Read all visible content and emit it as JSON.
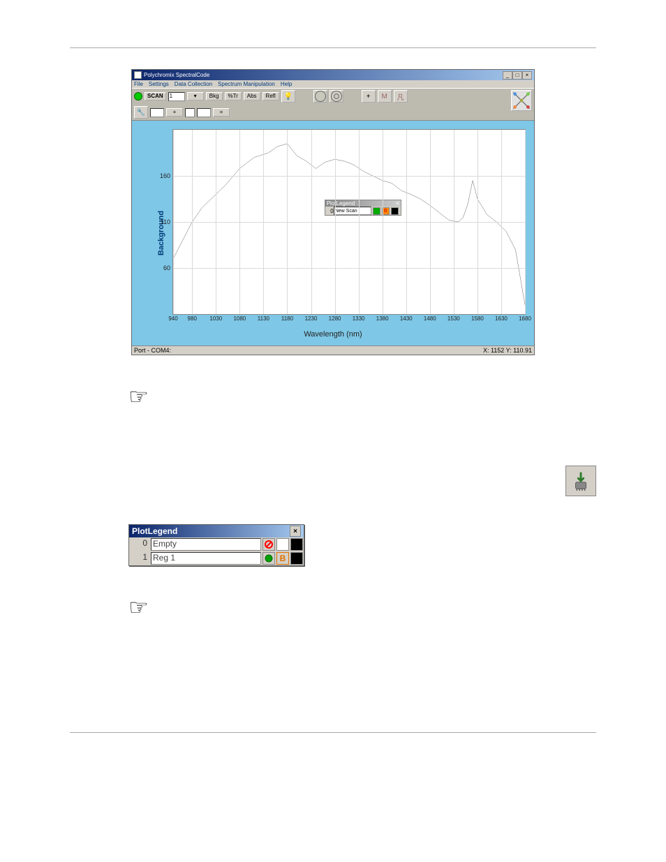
{
  "app_window": {
    "title": "Polychromix SpectralCode",
    "menu": [
      "File",
      "Settings",
      "Data Collection",
      "Spectrum Manipulation",
      "Help"
    ],
    "toolbar": {
      "scan_label": "SCAN",
      "scan_count": "1",
      "buttons": [
        "Bkg",
        "%Tr",
        "Abs",
        "Refl"
      ],
      "secondary_icons": [
        "lightbulb",
        "circle",
        "target",
        "axes",
        "M-icon",
        "x-icon"
      ]
    },
    "status_left": "Port - COM4:",
    "status_right": "X: 1152 Y: 110.91"
  },
  "chart": {
    "type": "line",
    "ylabel": "Background",
    "xlabel": "Wavelength (nm)",
    "xlim": [
      940,
      1680
    ],
    "ylim": [
      10,
      210
    ],
    "yticks": [
      60,
      110,
      160
    ],
    "xticks": [
      940,
      980,
      1030,
      1080,
      1130,
      1180,
      1230,
      1280,
      1330,
      1380,
      1430,
      1480,
      1530,
      1580,
      1630,
      1680
    ],
    "grid_color": "#d9d9d9",
    "line_color": "#000000",
    "background_color": "#ffffff",
    "panel_color": "#7ec7e6",
    "series": [
      {
        "x": 940,
        "y": 70
      },
      {
        "x": 960,
        "y": 90
      },
      {
        "x": 980,
        "y": 110
      },
      {
        "x": 1000,
        "y": 125
      },
      {
        "x": 1020,
        "y": 135
      },
      {
        "x": 1050,
        "y": 150
      },
      {
        "x": 1080,
        "y": 168
      },
      {
        "x": 1110,
        "y": 180
      },
      {
        "x": 1140,
        "y": 185
      },
      {
        "x": 1160,
        "y": 192
      },
      {
        "x": 1180,
        "y": 195
      },
      {
        "x": 1200,
        "y": 182
      },
      {
        "x": 1220,
        "y": 176
      },
      {
        "x": 1240,
        "y": 168
      },
      {
        "x": 1260,
        "y": 175
      },
      {
        "x": 1280,
        "y": 178
      },
      {
        "x": 1300,
        "y": 176
      },
      {
        "x": 1320,
        "y": 172
      },
      {
        "x": 1340,
        "y": 165
      },
      {
        "x": 1360,
        "y": 160
      },
      {
        "x": 1380,
        "y": 155
      },
      {
        "x": 1400,
        "y": 152
      },
      {
        "x": 1420,
        "y": 144
      },
      {
        "x": 1440,
        "y": 140
      },
      {
        "x": 1460,
        "y": 135
      },
      {
        "x": 1480,
        "y": 128
      },
      {
        "x": 1500,
        "y": 120
      },
      {
        "x": 1520,
        "y": 112
      },
      {
        "x": 1540,
        "y": 110
      },
      {
        "x": 1550,
        "y": 115
      },
      {
        "x": 1560,
        "y": 130
      },
      {
        "x": 1570,
        "y": 155
      },
      {
        "x": 1580,
        "y": 135
      },
      {
        "x": 1600,
        "y": 118
      },
      {
        "x": 1620,
        "y": 110
      },
      {
        "x": 1640,
        "y": 100
      },
      {
        "x": 1660,
        "y": 80
      },
      {
        "x": 1680,
        "y": 20
      }
    ],
    "plotlegend": {
      "title": "PlotLegend",
      "rows": [
        {
          "index": "0",
          "name": "New Scan"
        }
      ],
      "swatches": [
        "#00a000",
        "#ff8800",
        "#000000"
      ]
    }
  },
  "legend_standalone": {
    "title": "PlotLegend",
    "rows": [
      {
        "index": "0",
        "name": "Empty",
        "swatches": [
          "#ff0000",
          "#ffffff",
          "#000000"
        ],
        "red_ring": true
      },
      {
        "index": "1",
        "name": "Reg 1",
        "swatches": [
          "#00a000",
          "#ff8800",
          "#000000"
        ],
        "b_label": "B"
      }
    ]
  }
}
